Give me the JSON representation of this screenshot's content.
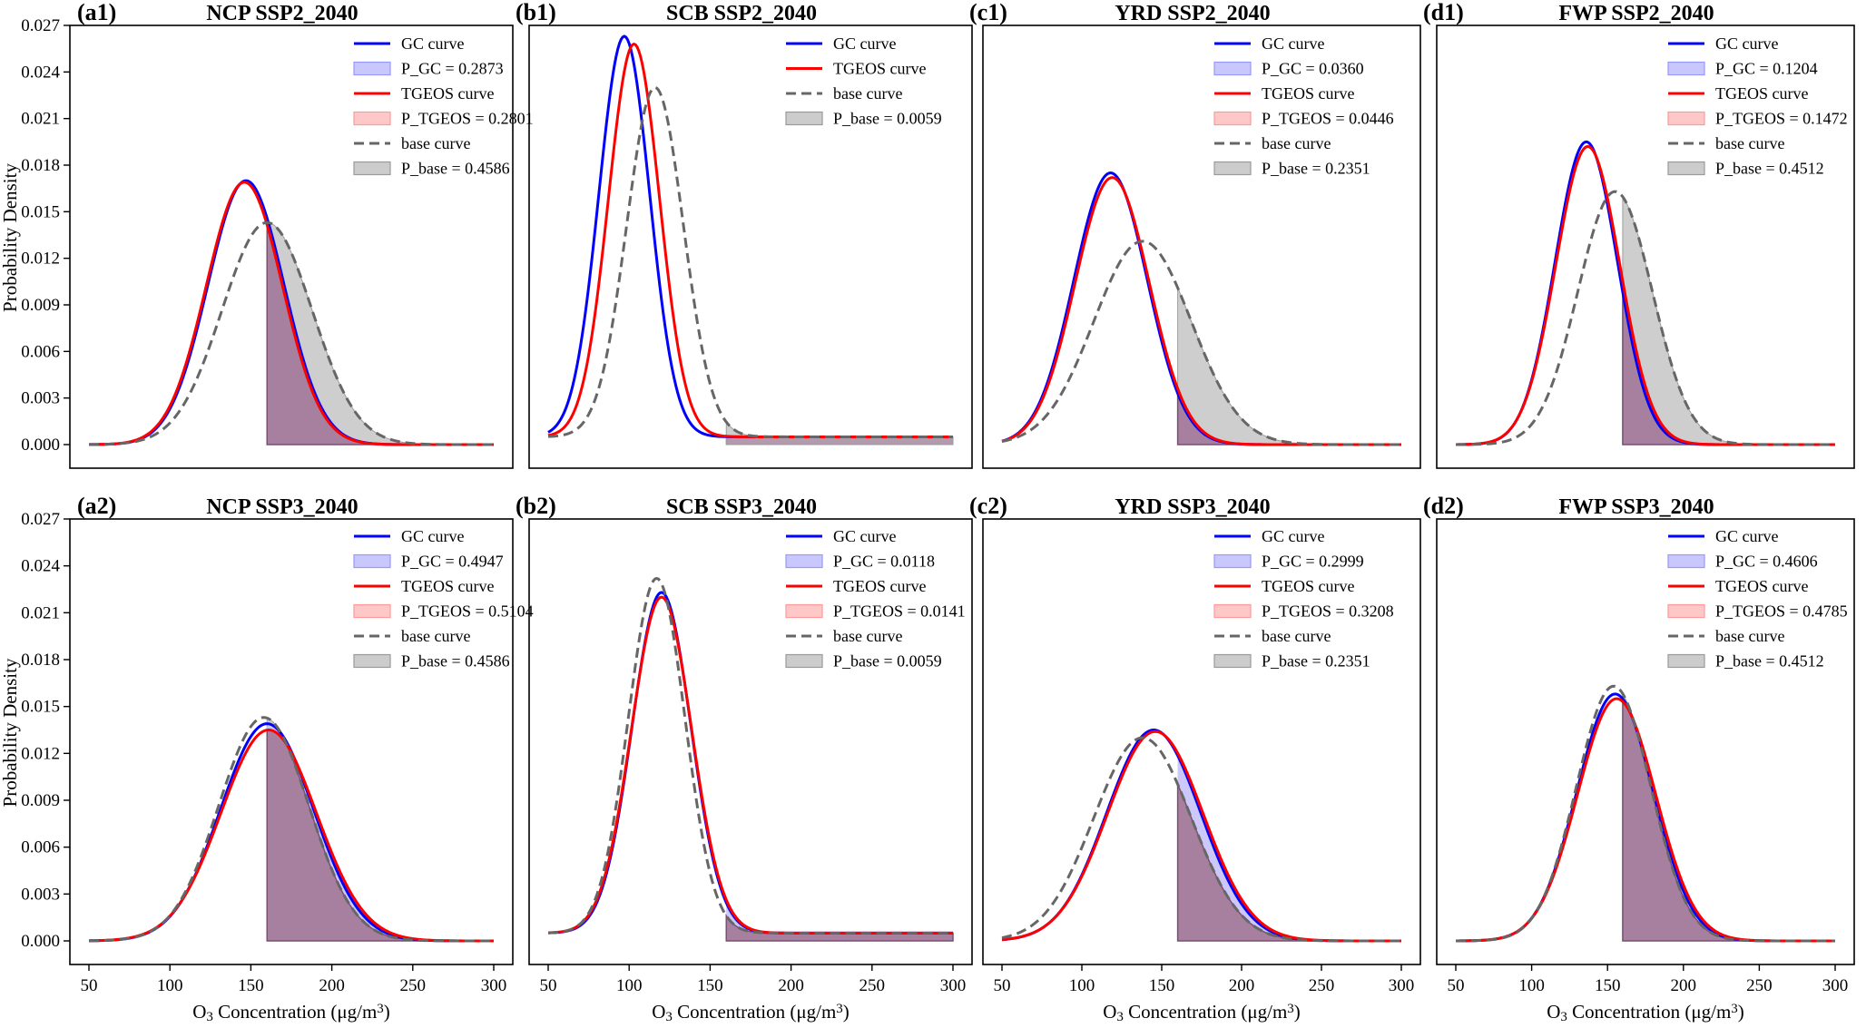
{
  "figure": {
    "ylabel": "Probability Density",
    "xlabel_prefix": "O",
    "xlabel_sub": "3",
    "xlabel_mid": " Concentration (μg/m",
    "xlabel_sup": "3",
    "xlabel_suffix": ")"
  },
  "colors": {
    "gc": "#0000ff",
    "tgeos": "#ff0000",
    "base": "#666666",
    "gc_fill": "#c8c8ff",
    "tgeos_fill": "#ffc8c8",
    "base_fill": "#cccccc",
    "overlap_fill": "#a8809f"
  },
  "chart_data": [
    {
      "type": "line",
      "tag": "(a1)",
      "title": "NCP  SSP2_2040",
      "row": 0,
      "col": 0,
      "xlim": [
        50,
        300
      ],
      "ylim": [
        0,
        0.027
      ],
      "threshold": 160,
      "xticks": [
        "50",
        "100",
        "150",
        "200",
        "250",
        "300"
      ],
      "yticks": [
        "0.000",
        "0.003",
        "0.006",
        "0.009",
        "0.012",
        "0.015",
        "0.018",
        "0.021",
        "0.024",
        "0.027"
      ],
      "show_y_ticklabels": true,
      "show_x_ticklabels": false,
      "show_ylabel": true,
      "show_xlabel": false,
      "series": [
        {
          "name": "GC curve",
          "mean": 147,
          "sd": 23.5,
          "peak": 0.017
        },
        {
          "name": "TGEOS curve",
          "mean": 146,
          "sd": 23.5,
          "peak": 0.0169
        },
        {
          "name": "base curve",
          "mean": 160,
          "sd": 27.8,
          "peak": 0.0143
        }
      ],
      "legend": [
        {
          "kind": "line",
          "key": "gc",
          "label": "GC curve"
        },
        {
          "kind": "patch",
          "key": "gc_fill",
          "label": "P_GC = 0.2873"
        },
        {
          "kind": "line",
          "key": "tgeos",
          "label": "TGEOS curve"
        },
        {
          "kind": "patch",
          "key": "tgeos_fill",
          "label": "P_TGEOS = 0.2801"
        },
        {
          "kind": "dash",
          "key": "base",
          "label": "base curve"
        },
        {
          "kind": "patch",
          "key": "base_fill",
          "label": "P_base = 0.4586"
        }
      ]
    },
    {
      "type": "line",
      "tag": "(b1)",
      "title": "SCB  SSP2_2040",
      "row": 0,
      "col": 1,
      "xlim": [
        50,
        300
      ],
      "ylim": [
        0,
        0.027
      ],
      "threshold": 160,
      "baseline_offset": 0.0005,
      "xticks": [
        "50",
        "100",
        "150",
        "200",
        "250",
        "300"
      ],
      "yticks": [
        "0.000",
        "0.003",
        "0.006",
        "0.009",
        "0.012",
        "0.015",
        "0.018",
        "0.021",
        "0.024",
        "0.027"
      ],
      "show_y_ticklabels": false,
      "show_x_ticklabels": false,
      "show_ylabel": false,
      "show_xlabel": false,
      "series": [
        {
          "name": "GC curve",
          "mean": 97,
          "sd": 15.7,
          "peak": 0.0258
        },
        {
          "name": "TGEOS curve",
          "mean": 103,
          "sd": 15.8,
          "peak": 0.0253
        },
        {
          "name": "base curve",
          "mean": 116,
          "sd": 17.5,
          "peak": 0.0225
        }
      ],
      "legend": [
        {
          "kind": "line",
          "key": "gc",
          "label": "GC curve"
        },
        {
          "kind": "line",
          "key": "tgeos",
          "label": "TGEOS curve"
        },
        {
          "kind": "dash",
          "key": "base",
          "label": "base curve"
        },
        {
          "kind": "patch",
          "key": "base_fill",
          "label": "P_base = 0.0059"
        }
      ]
    },
    {
      "type": "line",
      "tag": "(c1)",
      "title": "YRD  SSP2_2040",
      "row": 0,
      "col": 2,
      "xlim": [
        50,
        300
      ],
      "ylim": [
        0,
        0.027
      ],
      "threshold": 160,
      "xticks": [
        "50",
        "100",
        "150",
        "200",
        "250",
        "300"
      ],
      "yticks": [
        "0.000",
        "0.003",
        "0.006",
        "0.009",
        "0.012",
        "0.015",
        "0.018",
        "0.021",
        "0.024",
        "0.027"
      ],
      "show_y_ticklabels": false,
      "show_x_ticklabels": false,
      "show_ylabel": false,
      "show_xlabel": false,
      "series": [
        {
          "name": "GC curve",
          "mean": 118,
          "sd": 23.0,
          "peak": 0.0175
        },
        {
          "name": "TGEOS curve",
          "mean": 119,
          "sd": 23.2,
          "peak": 0.0172
        },
        {
          "name": "base curve",
          "mean": 138,
          "sd": 30.5,
          "peak": 0.0131
        }
      ],
      "legend": [
        {
          "kind": "line",
          "key": "gc",
          "label": "GC curve"
        },
        {
          "kind": "patch",
          "key": "gc_fill",
          "label": "P_GC = 0.0360"
        },
        {
          "kind": "line",
          "key": "tgeos",
          "label": "TGEOS curve"
        },
        {
          "kind": "patch",
          "key": "tgeos_fill",
          "label": "P_TGEOS = 0.0446"
        },
        {
          "kind": "dash",
          "key": "base",
          "label": "base curve"
        },
        {
          "kind": "patch",
          "key": "base_fill",
          "label": "P_base = 0.2351"
        }
      ]
    },
    {
      "type": "line",
      "tag": "(d1)",
      "title": "FWP  SSP2_2040",
      "row": 0,
      "col": 3,
      "xlim": [
        50,
        300
      ],
      "ylim": [
        0,
        0.027
      ],
      "threshold": 160,
      "xticks": [
        "50",
        "100",
        "150",
        "200",
        "250",
        "300"
      ],
      "yticks": [
        "0.000",
        "0.003",
        "0.006",
        "0.009",
        "0.012",
        "0.015",
        "0.018",
        "0.021",
        "0.024",
        "0.027"
      ],
      "show_y_ticklabels": false,
      "show_x_ticklabels": false,
      "show_ylabel": false,
      "show_xlabel": false,
      "series": [
        {
          "name": "GC curve",
          "mean": 136,
          "sd": 20.5,
          "peak": 0.0195
        },
        {
          "name": "TGEOS curve",
          "mean": 137,
          "sd": 21.0,
          "peak": 0.0192
        },
        {
          "name": "base curve",
          "mean": 155,
          "sd": 24.5,
          "peak": 0.0163
        }
      ],
      "legend": [
        {
          "kind": "line",
          "key": "gc",
          "label": "GC curve"
        },
        {
          "kind": "patch",
          "key": "gc_fill",
          "label": "P_GC = 0.1204"
        },
        {
          "kind": "line",
          "key": "tgeos",
          "label": "TGEOS curve"
        },
        {
          "kind": "patch",
          "key": "tgeos_fill",
          "label": "P_TGEOS = 0.1472"
        },
        {
          "kind": "dash",
          "key": "base",
          "label": "base curve"
        },
        {
          "kind": "patch",
          "key": "base_fill",
          "label": "P_base = 0.4512"
        }
      ]
    },
    {
      "type": "line",
      "tag": "(a2)",
      "title": "NCP  SSP3_2040",
      "row": 1,
      "col": 0,
      "xlim": [
        50,
        300
      ],
      "ylim": [
        0,
        0.027
      ],
      "threshold": 160,
      "xticks": [
        "50",
        "100",
        "150",
        "200",
        "250",
        "300"
      ],
      "yticks": [
        "0.000",
        "0.003",
        "0.006",
        "0.009",
        "0.012",
        "0.015",
        "0.018",
        "0.021",
        "0.024",
        "0.027"
      ],
      "show_y_ticklabels": true,
      "show_x_ticklabels": true,
      "show_ylabel": true,
      "show_xlabel": true,
      "series": [
        {
          "name": "GC curve",
          "mean": 160,
          "sd": 28.7,
          "peak": 0.0139
        },
        {
          "name": "TGEOS curve",
          "mean": 161,
          "sd": 29.5,
          "peak": 0.0135
        },
        {
          "name": "base curve",
          "mean": 158,
          "sd": 27.8,
          "peak": 0.0143
        }
      ],
      "legend": [
        {
          "kind": "line",
          "key": "gc",
          "label": "GC curve"
        },
        {
          "kind": "patch",
          "key": "gc_fill",
          "label": "P_GC = 0.4947"
        },
        {
          "kind": "line",
          "key": "tgeos",
          "label": "TGEOS curve"
        },
        {
          "kind": "patch",
          "key": "tgeos_fill",
          "label": "P_TGEOS = 0.5104"
        },
        {
          "kind": "dash",
          "key": "base",
          "label": "base curve"
        },
        {
          "kind": "patch",
          "key": "base_fill",
          "label": "P_base = 0.4586"
        }
      ]
    },
    {
      "type": "line",
      "tag": "(b2)",
      "title": "SCB  SSP3_2040",
      "row": 1,
      "col": 1,
      "xlim": [
        50,
        300
      ],
      "ylim": [
        0,
        0.027
      ],
      "threshold": 160,
      "baseline_offset": 0.0005,
      "xticks": [
        "50",
        "100",
        "150",
        "200",
        "250",
        "300"
      ],
      "yticks": [
        "0.000",
        "0.003",
        "0.006",
        "0.009",
        "0.012",
        "0.015",
        "0.018",
        "0.021",
        "0.024",
        "0.027"
      ],
      "show_y_ticklabels": false,
      "show_x_ticklabels": true,
      "show_ylabel": false,
      "show_xlabel": true,
      "series": [
        {
          "name": "GC curve",
          "mean": 120,
          "sd": 18.2,
          "peak": 0.0218
        },
        {
          "name": "TGEOS curve",
          "mean": 120,
          "sd": 18.6,
          "peak": 0.0215
        },
        {
          "name": "base curve",
          "mean": 117,
          "sd": 17.5,
          "peak": 0.0227
        }
      ],
      "legend": [
        {
          "kind": "line",
          "key": "gc",
          "label": "GC curve"
        },
        {
          "kind": "patch",
          "key": "gc_fill",
          "label": "P_GC = 0.0118"
        },
        {
          "kind": "line",
          "key": "tgeos",
          "label": "TGEOS curve"
        },
        {
          "kind": "patch",
          "key": "tgeos_fill",
          "label": "P_TGEOS = 0.0141"
        },
        {
          "kind": "dash",
          "key": "base",
          "label": "base curve"
        },
        {
          "kind": "patch",
          "key": "base_fill",
          "label": "P_base = 0.0059"
        }
      ]
    },
    {
      "type": "line",
      "tag": "(c2)",
      "title": "YRD  SSP3_2040",
      "row": 1,
      "col": 2,
      "xlim": [
        50,
        300
      ],
      "ylim": [
        0,
        0.027
      ],
      "threshold": 160,
      "xticks": [
        "50",
        "100",
        "150",
        "200",
        "250",
        "300"
      ],
      "yticks": [
        "0.000",
        "0.003",
        "0.006",
        "0.009",
        "0.012",
        "0.015",
        "0.018",
        "0.021",
        "0.024",
        "0.027"
      ],
      "show_y_ticklabels": false,
      "show_x_ticklabels": true,
      "show_ylabel": false,
      "show_xlabel": true,
      "series": [
        {
          "name": "GC curve",
          "mean": 145,
          "sd": 29.5,
          "peak": 0.0135
        },
        {
          "name": "TGEOS curve",
          "mean": 146,
          "sd": 30.0,
          "peak": 0.0134
        },
        {
          "name": "base curve",
          "mean": 138,
          "sd": 30.5,
          "peak": 0.013
        }
      ],
      "legend": [
        {
          "kind": "line",
          "key": "gc",
          "label": "GC curve"
        },
        {
          "kind": "patch",
          "key": "gc_fill",
          "label": "P_GC = 0.2999"
        },
        {
          "kind": "line",
          "key": "tgeos",
          "label": "TGEOS curve"
        },
        {
          "kind": "patch",
          "key": "tgeos_fill",
          "label": "P_TGEOS = 0.3208"
        },
        {
          "kind": "dash",
          "key": "base",
          "label": "base curve"
        },
        {
          "kind": "patch",
          "key": "base_fill",
          "label": "P_base = 0.2351"
        }
      ]
    },
    {
      "type": "line",
      "tag": "(d2)",
      "title": "FWP  SSP3_2040",
      "row": 1,
      "col": 3,
      "xlim": [
        50,
        300
      ],
      "ylim": [
        0,
        0.027
      ],
      "threshold": 160,
      "xticks": [
        "50",
        "100",
        "150",
        "200",
        "250",
        "300"
      ],
      "yticks": [
        "0.000",
        "0.003",
        "0.006",
        "0.009",
        "0.012",
        "0.015",
        "0.018",
        "0.021",
        "0.024",
        "0.027"
      ],
      "show_y_ticklabels": false,
      "show_x_ticklabels": true,
      "show_ylabel": false,
      "show_xlabel": true,
      "series": [
        {
          "name": "GC curve",
          "mean": 155,
          "sd": 25.2,
          "peak": 0.0158
        },
        {
          "name": "TGEOS curve",
          "mean": 156,
          "sd": 25.7,
          "peak": 0.0155
        },
        {
          "name": "base curve",
          "mean": 154,
          "sd": 24.5,
          "peak": 0.0163
        }
      ],
      "legend": [
        {
          "kind": "line",
          "key": "gc",
          "label": "GC curve"
        },
        {
          "kind": "patch",
          "key": "gc_fill",
          "label": "P_GC = 0.4606"
        },
        {
          "kind": "line",
          "key": "tgeos",
          "label": "TGEOS curve"
        },
        {
          "kind": "patch",
          "key": "tgeos_fill",
          "label": "P_TGEOS = 0.4785"
        },
        {
          "kind": "dash",
          "key": "base",
          "label": "base curve"
        },
        {
          "kind": "patch",
          "key": "base_fill",
          "label": "P_base = 0.4512"
        }
      ]
    }
  ]
}
